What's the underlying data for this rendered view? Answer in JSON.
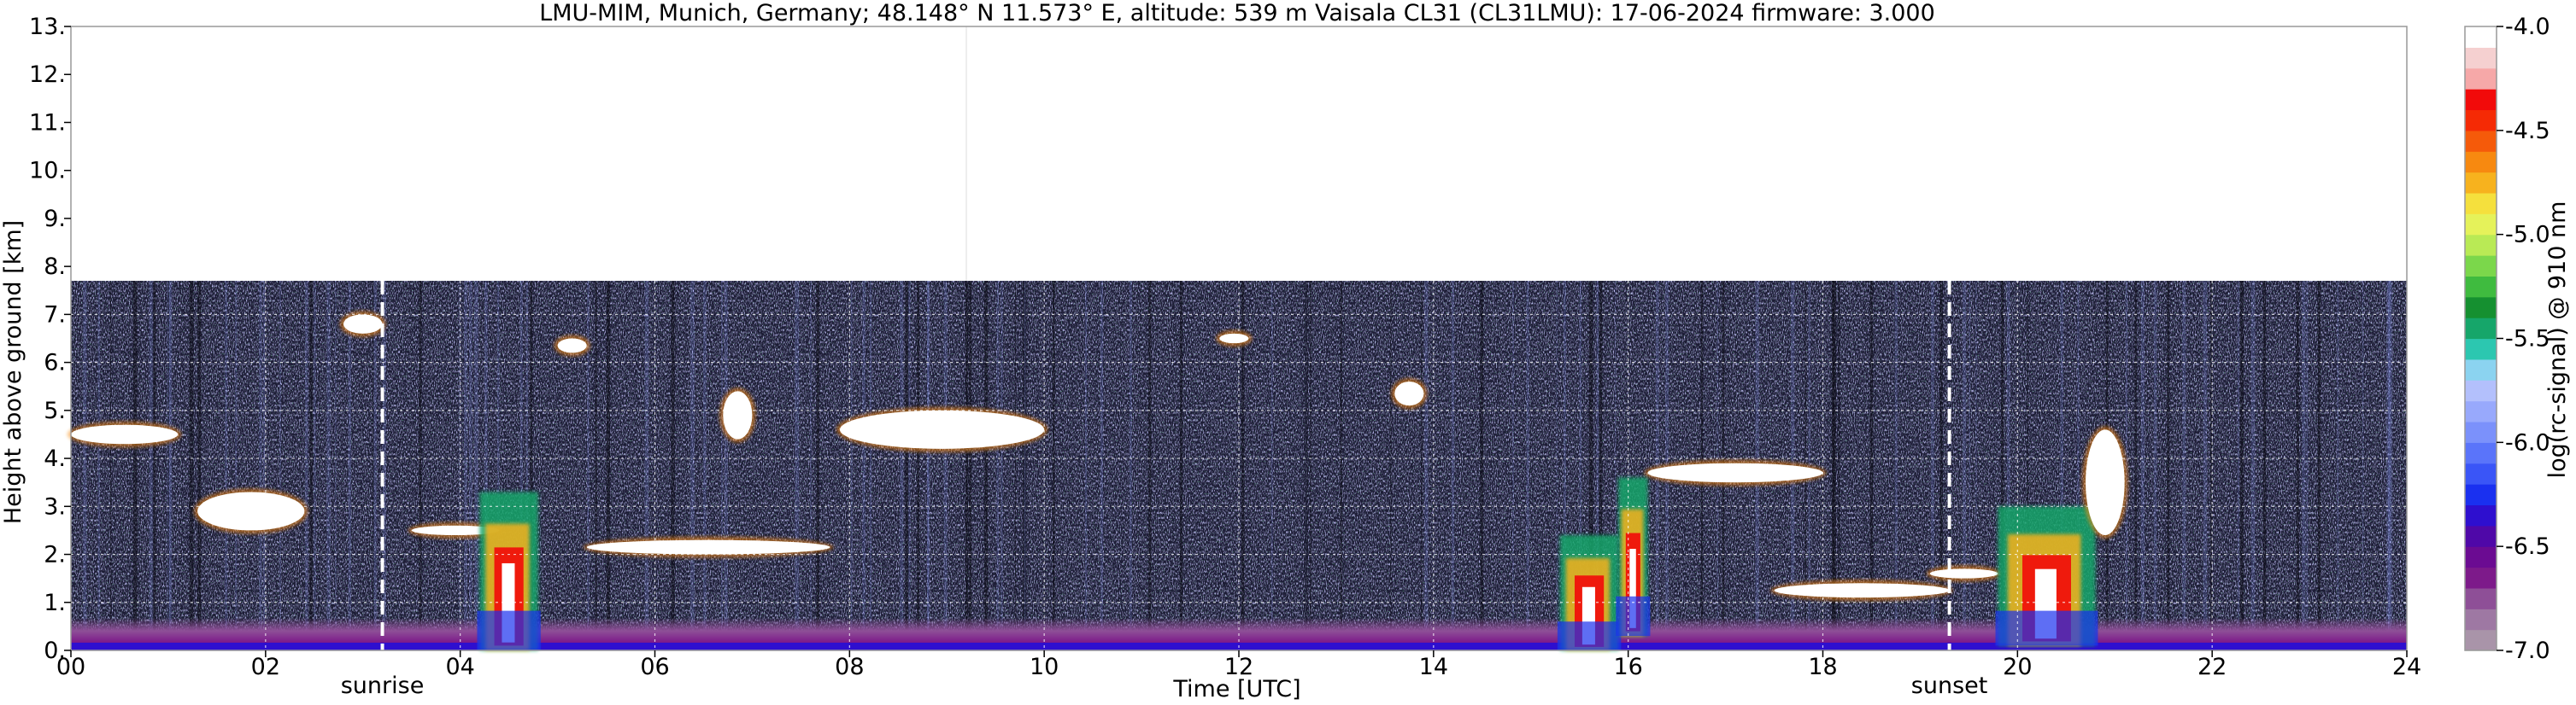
{
  "chart_data": {
    "type": "heatmap",
    "title": "LMU-MIM, Munich, Germany; 48.148° N 11.573° E, altitude: 539 m    Vaisala CL31 (CL31LMU): 17-06-2024    firmware: 3.000",
    "xlabel": "Time [UTC]",
    "ylabel": "Height above ground [km]",
    "xlim": [
      0,
      24
    ],
    "ylim": [
      0,
      13
    ],
    "x_ticks": [
      0,
      2,
      4,
      6,
      8,
      10,
      12,
      14,
      16,
      18,
      20,
      22,
      24
    ],
    "x_tick_labels": [
      "00",
      "02",
      "04",
      "06",
      "08",
      "10",
      "12",
      "14",
      "16",
      "18",
      "20",
      "22",
      "24"
    ],
    "y_ticks": [
      0,
      1,
      2,
      3,
      4,
      5,
      6,
      7,
      8,
      9,
      10,
      11,
      12,
      13
    ],
    "y_tick_labels": [
      "0.",
      "1.",
      "2.",
      "3.",
      "4.",
      "5.",
      "6.",
      "7.",
      "8.",
      "9.",
      "10.",
      "11.",
      "12.",
      "13."
    ],
    "grid": true,
    "data_top_km": 7.7,
    "events": [
      {
        "label": "sunrise",
        "x": 3.2
      },
      {
        "label": "sunset",
        "x": 19.3
      }
    ],
    "colorbar": {
      "label": "log(rc-signal) @ 910 nm",
      "range": [
        -7.0,
        -4.0
      ],
      "ticks": [
        -4.0,
        -4.5,
        -5.0,
        -5.5,
        -6.0,
        -6.5,
        -7.0
      ],
      "tick_labels": [
        "-4.0",
        "-4.5",
        "-5.0",
        "-5.5",
        "-6.0",
        "-6.5",
        "-7.0"
      ],
      "colors": [
        "#a994a9",
        "#9e78a3",
        "#8e4f97",
        "#7d1a8a",
        "#6b0b92",
        "#4f08a8",
        "#2e0fcf",
        "#1a30f0",
        "#3a55f7",
        "#5a74fa",
        "#7b91fb",
        "#98a9fc",
        "#b3c0fc",
        "#8bd3f0",
        "#2cc7b0",
        "#16a66a",
        "#159030",
        "#3fbb3f",
        "#7bd74b",
        "#b9ea55",
        "#e5f25a",
        "#f5e03d",
        "#f7b21e",
        "#f78910",
        "#f55a0a",
        "#f52a05",
        "#f20a0a",
        "#f6a8a8",
        "#f5d0d0",
        "#ffffff"
      ]
    },
    "features": [
      {
        "kind": "aerosol_layer",
        "x": [
          0.0,
          24.0
        ],
        "height_km": [
          0.0,
          0.5
        ]
      },
      {
        "kind": "cloud",
        "x": [
          0.0,
          1.1
        ],
        "height_km": [
          4.3,
          4.7
        ]
      },
      {
        "kind": "cloud",
        "x": [
          1.3,
          2.4
        ],
        "height_km": [
          2.5,
          3.3
        ]
      },
      {
        "kind": "cloud",
        "x": [
          2.8,
          3.2
        ],
        "height_km": [
          6.6,
          7.0
        ]
      },
      {
        "kind": "cloud",
        "x": [
          3.5,
          4.4
        ],
        "height_km": [
          2.4,
          2.6
        ]
      },
      {
        "kind": "convective_column",
        "x": [
          4.2,
          4.8
        ],
        "height_km": [
          0.0,
          3.3
        ]
      },
      {
        "kind": "cloud",
        "x": [
          5.0,
          5.3
        ],
        "height_km": [
          6.2,
          6.5
        ]
      },
      {
        "kind": "cloud",
        "x": [
          5.3,
          7.8
        ],
        "height_km": [
          2.0,
          2.3
        ]
      },
      {
        "kind": "cloud",
        "x": [
          6.7,
          7.0
        ],
        "height_km": [
          4.4,
          5.4
        ]
      },
      {
        "kind": "cloud",
        "x": [
          7.9,
          10.0
        ],
        "height_km": [
          4.2,
          5.0
        ]
      },
      {
        "kind": "cloud",
        "x": [
          11.8,
          12.1
        ],
        "height_km": [
          6.4,
          6.6
        ]
      },
      {
        "kind": "cloud",
        "x": [
          13.6,
          13.9
        ],
        "height_km": [
          5.1,
          5.6
        ]
      },
      {
        "kind": "convective_column",
        "x": [
          15.3,
          15.9
        ],
        "height_km": [
          0.0,
          2.4
        ]
      },
      {
        "kind": "convective_column",
        "x": [
          15.9,
          16.2
        ],
        "height_km": [
          0.3,
          3.6
        ]
      },
      {
        "kind": "cloud",
        "x": [
          16.2,
          18.0
        ],
        "height_km": [
          3.5,
          3.9
        ]
      },
      {
        "kind": "cloud",
        "x": [
          17.5,
          19.3
        ],
        "height_km": [
          1.1,
          1.4
        ]
      },
      {
        "kind": "cloud",
        "x": [
          19.1,
          19.8
        ],
        "height_km": [
          1.5,
          1.7
        ]
      },
      {
        "kind": "convective_column",
        "x": [
          19.8,
          20.8
        ],
        "height_km": [
          0.1,
          3.0
        ]
      },
      {
        "kind": "cloud",
        "x": [
          20.7,
          21.1
        ],
        "height_km": [
          2.4,
          4.6
        ]
      }
    ]
  }
}
